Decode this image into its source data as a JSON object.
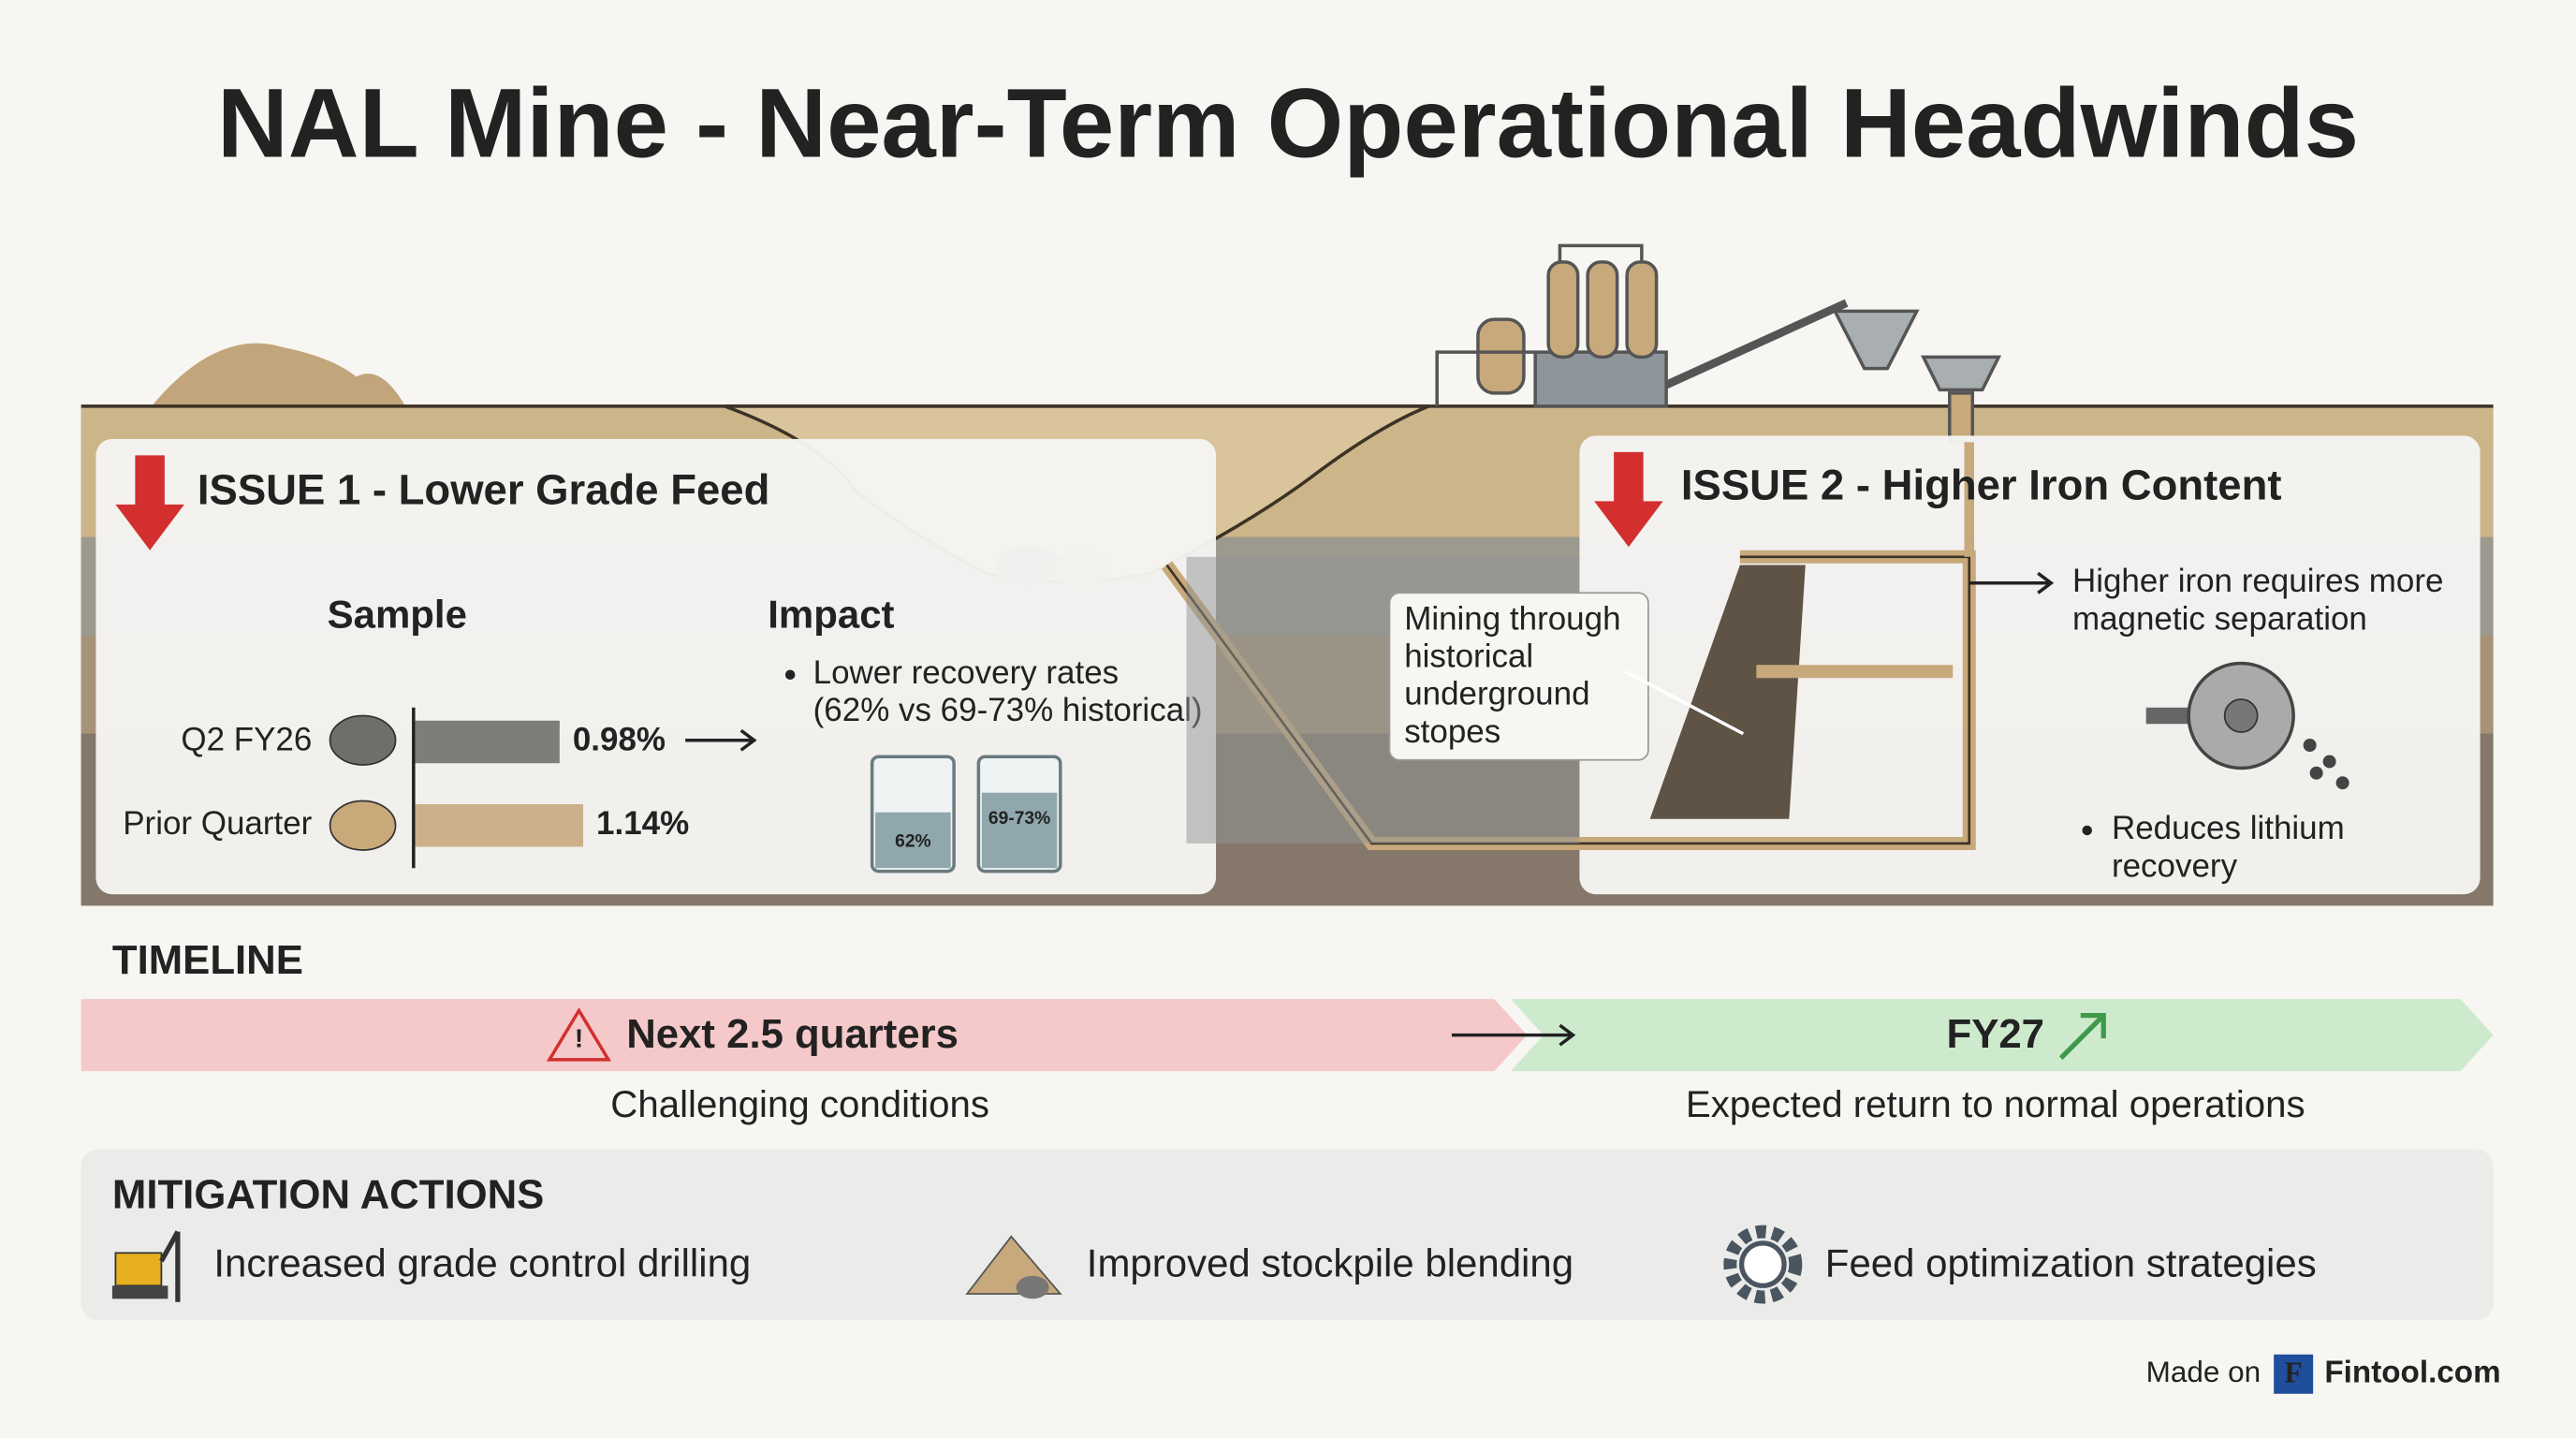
{
  "title": "NAL Mine - Near-Term Operational Headwinds",
  "issue1": {
    "title": "ISSUE 1 - Lower Grade Feed",
    "sample_header": "Sample",
    "impact_header": "Impact",
    "samples": [
      {
        "name": "Q2 FY26",
        "value": 0.98,
        "label": "0.98%"
      },
      {
        "name": "Prior Quarter",
        "value": 1.14,
        "label": "1.14%"
      }
    ],
    "impact_lines": [
      "Lower recovery rates",
      "(62% vs 69-73% historical)"
    ],
    "beakers": [
      "62%",
      "69-73%"
    ]
  },
  "issue2": {
    "title": "ISSUE 2 - Higher Iron Content",
    "callout": [
      "Mining through",
      "historical",
      "underground",
      "stopes"
    ],
    "note": [
      "Higher iron requires more",
      "magnetic separation"
    ],
    "bullet": [
      "Reduces lithium",
      "recovery"
    ]
  },
  "timeline": {
    "heading": "TIMELINE",
    "phases": [
      {
        "label": "Next 2.5 quarters",
        "caption": "Challenging conditions"
      },
      {
        "label": "FY27",
        "caption": "Expected return to normal operations"
      }
    ]
  },
  "mitigation": {
    "heading": "MITIGATION ACTIONS",
    "actions": [
      "Increased grade control drilling",
      "Improved stockpile blending",
      "Feed optimization strategies"
    ]
  },
  "footer": {
    "made_on": "Made on",
    "brand_icon": "F",
    "brand": "Fintool.com"
  }
}
